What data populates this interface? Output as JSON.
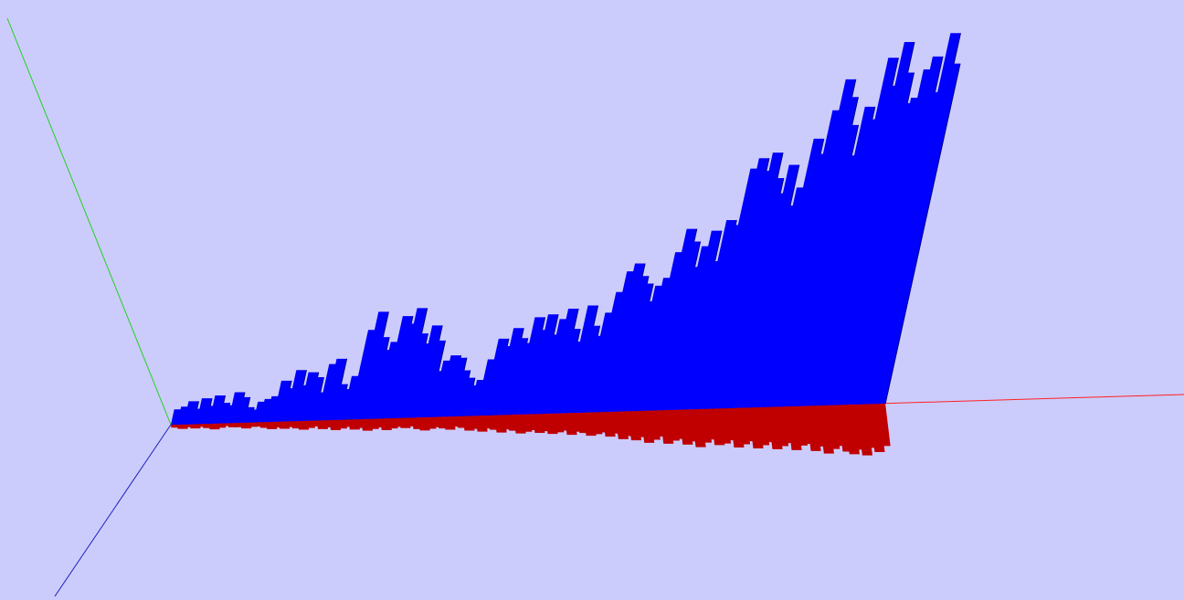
{
  "chart_data": {
    "type": "bar",
    "view": "3d-perspective",
    "xlabel": "",
    "ylabel": "",
    "grid": false,
    "colors": {
      "background": "#ccccfc",
      "axis_x": "#ff2020",
      "axis_y": "#20d020",
      "axis_z": "#2020c0",
      "series_top": "#0000ff",
      "series_top_edge": "#000080",
      "series_bottom": "#c00000"
    },
    "series": [
      {
        "values": [
          0.06,
          0.07,
          0.09,
          0.06,
          0.1,
          0.07,
          0.11,
          0.08,
          0.07,
          0.12,
          0.1,
          0.06,
          0.05,
          0.08,
          0.09,
          0.1,
          0.16,
          0.13,
          0.2,
          0.14,
          0.19,
          0.17,
          0.11,
          0.22,
          0.24,
          0.14,
          0.12,
          0.17,
          0.35,
          0.42,
          0.32,
          0.27,
          0.3,
          0.4,
          0.37,
          0.43,
          0.33,
          0.29,
          0.36,
          0.3,
          0.18,
          0.22,
          0.24,
          0.23,
          0.18,
          0.15,
          0.12,
          0.14,
          0.22,
          0.3,
          0.27,
          0.34,
          0.3,
          0.28,
          0.38,
          0.33,
          0.39,
          0.31,
          0.37,
          0.41,
          0.33,
          0.28,
          0.42,
          0.34,
          0.3,
          0.39,
          0.47,
          0.55,
          0.58,
          0.53,
          0.5,
          0.43,
          0.49,
          0.52,
          0.62,
          0.71,
          0.66,
          0.56,
          0.64,
          0.7,
          0.58,
          0.74,
          0.72,
          0.94,
          0.98,
          0.93,
          1.0,
          0.9,
          0.84,
          0.95,
          0.79,
          0.86,
          1.05,
          0.99,
          1.16,
          1.28,
          1.21,
          1.1,
          0.98,
          1.17,
          1.12,
          1.36,
          1.25,
          1.42,
          1.3,
          1.18,
          1.2,
          1.31,
          1.36,
          1.22,
          1.45,
          1.33
        ]
      },
      {
        "values": [
          0.02,
          0.03,
          0.02,
          0.03,
          0.02,
          0.03,
          0.04,
          0.03,
          0.02,
          0.03,
          0.03,
          0.04,
          0.03,
          0.03,
          0.04,
          0.05,
          0.04,
          0.05,
          0.04,
          0.05,
          0.06,
          0.05,
          0.04,
          0.06,
          0.05,
          0.07,
          0.06,
          0.05,
          0.07,
          0.06,
          0.08,
          0.07,
          0.06,
          0.08,
          0.07,
          0.06,
          0.07,
          0.06,
          0.08,
          0.09,
          0.08,
          0.07,
          0.08,
          0.09,
          0.07,
          0.08,
          0.1,
          0.09,
          0.11,
          0.09,
          0.1,
          0.12,
          0.1,
          0.11,
          0.13,
          0.12,
          0.11,
          0.13,
          0.12,
          0.14,
          0.13,
          0.12,
          0.15,
          0.13,
          0.14,
          0.16,
          0.15,
          0.14,
          0.17,
          0.15,
          0.19,
          0.17,
          0.2,
          0.18,
          0.22,
          0.2,
          0.18,
          0.23,
          0.21,
          0.2,
          0.24,
          0.22,
          0.26,
          0.23,
          0.21,
          0.25,
          0.24,
          0.22,
          0.27,
          0.25,
          0.23,
          0.28,
          0.26,
          0.24,
          0.29,
          0.27,
          0.25,
          0.3,
          0.27,
          0.26,
          0.31,
          0.28,
          0.33,
          0.3,
          0.28,
          0.32,
          0.34,
          0.31,
          0.35,
          0.3,
          0.33,
          0.29
        ]
      }
    ]
  }
}
